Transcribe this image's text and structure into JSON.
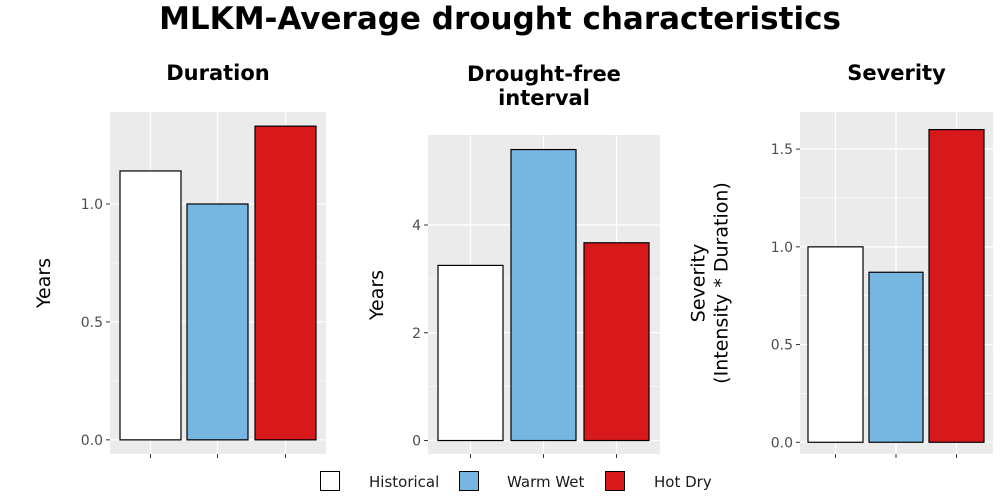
{
  "title": "MLKM-Average drought characteristics",
  "legend": {
    "items": [
      {
        "label": "Historical",
        "color": "#ffffff"
      },
      {
        "label": "Warm Wet",
        "color": "#76b6e0"
      },
      {
        "label": "Hot Dry",
        "color": "#d7191c"
      }
    ]
  },
  "chart_data": [
    {
      "type": "bar",
      "title": "Duration",
      "ylabel": "Years",
      "categories": [
        "Historical",
        "Warm Wet",
        "Hot Dry"
      ],
      "values": [
        1.14,
        1.0,
        1.33
      ],
      "ylim": [
        -0.06,
        1.39
      ],
      "yticks": [
        0.0,
        0.5,
        1.0
      ],
      "ytick_labels": [
        "0.0",
        "0.5",
        "1.0"
      ],
      "grid": true
    },
    {
      "type": "bar",
      "title": "Drought-free\ninterval",
      "ylabel": "Years",
      "categories": [
        "Historical",
        "Warm Wet",
        "Hot Dry"
      ],
      "values": [
        3.25,
        5.4,
        3.67
      ],
      "ylim": [
        -0.25,
        5.67
      ],
      "yticks": [
        0,
        2,
        4
      ],
      "ytick_labels": [
        "0",
        "2",
        "4"
      ],
      "grid": true
    },
    {
      "type": "bar",
      "title": "Severity",
      "ylabel": "Severity\n(Intensity * Duration)",
      "categories": [
        "Historical",
        "Warm Wet",
        "Hot Dry"
      ],
      "values": [
        1.0,
        0.87,
        1.6
      ],
      "ylim": [
        -0.06,
        1.69
      ],
      "yticks": [
        0.0,
        0.5,
        1.0,
        1.5
      ],
      "ytick_labels": [
        "0.0",
        "0.5",
        "1.0",
        "1.5"
      ],
      "grid": true
    }
  ]
}
